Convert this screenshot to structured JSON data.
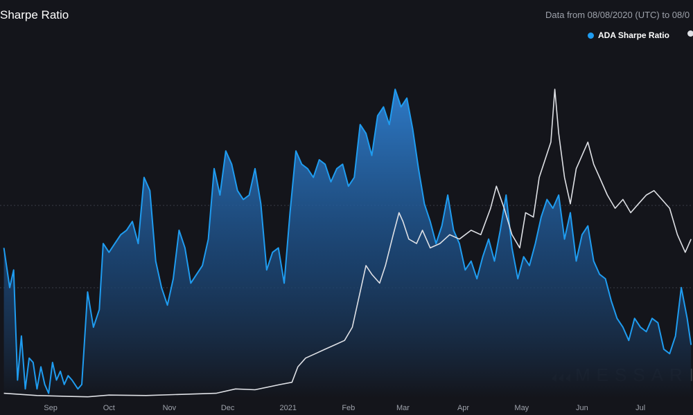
{
  "header": {
    "title": "Sharpe Ratio",
    "source_text": "Data from 08/08/2020 (UTC) to 08/0"
  },
  "watermark": "MESSARI",
  "colors": {
    "background": "#14151b",
    "ada": "#1f9cf0",
    "comparison": "#dfe1e6",
    "grid": "#3a3d47",
    "tick_text": "#9ea2ab"
  },
  "chart_data": {
    "type": "area",
    "title": "Sharpe Ratio",
    "x_axis": {
      "type": "date",
      "ticks": [
        "Sep",
        "Oct",
        "Nov",
        "Dec",
        "2021",
        "Feb",
        "Mar",
        "Apr",
        "May",
        "Jun",
        "Jul"
      ]
    },
    "legend": {
      "position": "top-right",
      "entries": [
        "ADA Sharpe Ratio"
      ]
    },
    "grid": {
      "horizontal_lines": 2,
      "style": "dotted"
    },
    "series": [
      {
        "name": "ADA Sharpe Ratio",
        "style": "area",
        "data": [
          [
            "2020-08-08",
            3.4
          ],
          [
            "2020-08-11",
            2.5
          ],
          [
            "2020-08-13",
            2.9
          ],
          [
            "2020-08-15",
            0.4
          ],
          [
            "2020-08-17",
            1.4
          ],
          [
            "2020-08-19",
            0.2
          ],
          [
            "2020-08-21",
            0.9
          ],
          [
            "2020-08-23",
            0.8
          ],
          [
            "2020-08-25",
            0.2
          ],
          [
            "2020-08-27",
            0.7
          ],
          [
            "2020-08-29",
            0.3
          ],
          [
            "2020-08-31",
            0.1
          ],
          [
            "2020-09-02",
            0.8
          ],
          [
            "2020-09-04",
            0.4
          ],
          [
            "2020-09-06",
            0.6
          ],
          [
            "2020-09-08",
            0.3
          ],
          [
            "2020-09-10",
            0.5
          ],
          [
            "2020-09-12",
            0.4
          ],
          [
            "2020-09-15",
            0.2
          ],
          [
            "2020-09-17",
            0.3
          ],
          [
            "2020-09-20",
            2.4
          ],
          [
            "2020-09-23",
            1.6
          ],
          [
            "2020-09-26",
            2.0
          ],
          [
            "2020-09-28",
            3.5
          ],
          [
            "2020-10-01",
            3.3
          ],
          [
            "2020-10-04",
            3.5
          ],
          [
            "2020-10-07",
            3.7
          ],
          [
            "2020-10-10",
            3.8
          ],
          [
            "2020-10-13",
            4.0
          ],
          [
            "2020-10-16",
            3.5
          ],
          [
            "2020-10-19",
            5.0
          ],
          [
            "2020-10-22",
            4.7
          ],
          [
            "2020-10-25",
            3.1
          ],
          [
            "2020-10-28",
            2.5
          ],
          [
            "2020-10-31",
            2.1
          ],
          [
            "2020-11-03",
            2.7
          ],
          [
            "2020-11-06",
            3.8
          ],
          [
            "2020-11-09",
            3.4
          ],
          [
            "2020-11-12",
            2.6
          ],
          [
            "2020-11-15",
            2.8
          ],
          [
            "2020-11-18",
            3.0
          ],
          [
            "2020-11-21",
            3.6
          ],
          [
            "2020-11-24",
            5.2
          ],
          [
            "2020-11-27",
            4.6
          ],
          [
            "2020-11-30",
            5.6
          ],
          [
            "2020-12-03",
            5.3
          ],
          [
            "2020-12-06",
            4.7
          ],
          [
            "2020-12-09",
            4.5
          ],
          [
            "2020-12-12",
            4.6
          ],
          [
            "2020-12-15",
            5.2
          ],
          [
            "2020-12-18",
            4.4
          ],
          [
            "2020-12-21",
            2.9
          ],
          [
            "2020-12-24",
            3.3
          ],
          [
            "2020-12-27",
            3.4
          ],
          [
            "2020-12-30",
            2.6
          ],
          [
            "2021-01-02",
            4.2
          ],
          [
            "2021-01-05",
            5.6
          ],
          [
            "2021-01-08",
            5.3
          ],
          [
            "2021-01-11",
            5.2
          ],
          [
            "2021-01-14",
            5.0
          ],
          [
            "2021-01-17",
            5.4
          ],
          [
            "2021-01-20",
            5.3
          ],
          [
            "2021-01-23",
            4.9
          ],
          [
            "2021-01-26",
            5.2
          ],
          [
            "2021-01-29",
            5.3
          ],
          [
            "2021-02-01",
            4.8
          ],
          [
            "2021-02-04",
            5.0
          ],
          [
            "2021-02-07",
            6.2
          ],
          [
            "2021-02-10",
            6.0
          ],
          [
            "2021-02-13",
            5.5
          ],
          [
            "2021-02-16",
            6.4
          ],
          [
            "2021-02-19",
            6.6
          ],
          [
            "2021-02-22",
            6.2
          ],
          [
            "2021-02-25",
            7.0
          ],
          [
            "2021-02-28",
            6.6
          ],
          [
            "2021-03-03",
            6.8
          ],
          [
            "2021-03-06",
            6.1
          ],
          [
            "2021-03-09",
            5.2
          ],
          [
            "2021-03-12",
            4.4
          ],
          [
            "2021-03-15",
            4.0
          ],
          [
            "2021-03-18",
            3.5
          ],
          [
            "2021-03-21",
            3.9
          ],
          [
            "2021-03-24",
            4.6
          ],
          [
            "2021-03-27",
            3.8
          ],
          [
            "2021-03-30",
            3.5
          ],
          [
            "2021-04-02",
            2.9
          ],
          [
            "2021-04-05",
            3.1
          ],
          [
            "2021-04-08",
            2.7
          ],
          [
            "2021-04-11",
            3.2
          ],
          [
            "2021-04-14",
            3.6
          ],
          [
            "2021-04-17",
            3.1
          ],
          [
            "2021-04-20",
            3.8
          ],
          [
            "2021-04-23",
            4.6
          ],
          [
            "2021-04-26",
            3.4
          ],
          [
            "2021-04-29",
            2.7
          ],
          [
            "2021-05-02",
            3.2
          ],
          [
            "2021-05-05",
            3.0
          ],
          [
            "2021-05-08",
            3.5
          ],
          [
            "2021-05-11",
            4.1
          ],
          [
            "2021-05-14",
            4.5
          ],
          [
            "2021-05-17",
            4.3
          ],
          [
            "2021-05-20",
            4.6
          ],
          [
            "2021-05-23",
            3.6
          ],
          [
            "2021-05-26",
            4.2
          ],
          [
            "2021-05-29",
            3.1
          ],
          [
            "2021-06-01",
            3.7
          ],
          [
            "2021-06-04",
            3.9
          ],
          [
            "2021-06-07",
            3.1
          ],
          [
            "2021-06-10",
            2.8
          ],
          [
            "2021-06-13",
            2.7
          ],
          [
            "2021-06-16",
            2.2
          ],
          [
            "2021-06-19",
            1.8
          ],
          [
            "2021-06-22",
            1.6
          ],
          [
            "2021-06-25",
            1.3
          ],
          [
            "2021-06-28",
            1.8
          ],
          [
            "2021-07-01",
            1.6
          ],
          [
            "2021-07-04",
            1.5
          ],
          [
            "2021-07-07",
            1.8
          ],
          [
            "2021-07-10",
            1.7
          ],
          [
            "2021-07-13",
            1.1
          ],
          [
            "2021-07-16",
            1.0
          ],
          [
            "2021-07-19",
            1.4
          ],
          [
            "2021-07-22",
            2.5
          ],
          [
            "2021-07-25",
            1.8
          ],
          [
            "2021-07-27",
            1.2
          ]
        ]
      },
      {
        "name": "",
        "style": "line",
        "data": [
          [
            "2020-08-08",
            0.1
          ],
          [
            "2020-08-25",
            0.05
          ],
          [
            "2020-09-10",
            0.03
          ],
          [
            "2020-09-20",
            0.02
          ],
          [
            "2020-10-01",
            0.06
          ],
          [
            "2020-10-20",
            0.05
          ],
          [
            "2020-11-10",
            0.08
          ],
          [
            "2020-11-25",
            0.1
          ],
          [
            "2020-12-05",
            0.2
          ],
          [
            "2020-12-15",
            0.18
          ],
          [
            "2020-12-28",
            0.3
          ],
          [
            "2021-01-03",
            0.35
          ],
          [
            "2021-01-06",
            0.7
          ],
          [
            "2021-01-10",
            0.9
          ],
          [
            "2021-01-15",
            1.0
          ],
          [
            "2021-01-20",
            1.1
          ],
          [
            "2021-01-25",
            1.2
          ],
          [
            "2021-01-30",
            1.3
          ],
          [
            "2021-02-03",
            1.6
          ],
          [
            "2021-02-07",
            2.4
          ],
          [
            "2021-02-10",
            3.0
          ],
          [
            "2021-02-13",
            2.8
          ],
          [
            "2021-02-17",
            2.6
          ],
          [
            "2021-02-20",
            3.0
          ],
          [
            "2021-02-24",
            3.7
          ],
          [
            "2021-02-27",
            4.2
          ],
          [
            "2021-03-01",
            4.0
          ],
          [
            "2021-03-04",
            3.6
          ],
          [
            "2021-03-08",
            3.5
          ],
          [
            "2021-03-11",
            3.8
          ],
          [
            "2021-03-15",
            3.4
          ],
          [
            "2021-03-20",
            3.5
          ],
          [
            "2021-03-25",
            3.7
          ],
          [
            "2021-03-30",
            3.6
          ],
          [
            "2021-04-05",
            3.8
          ],
          [
            "2021-04-10",
            3.7
          ],
          [
            "2021-04-15",
            4.3
          ],
          [
            "2021-04-18",
            4.8
          ],
          [
            "2021-04-22",
            4.3
          ],
          [
            "2021-04-26",
            3.7
          ],
          [
            "2021-04-30",
            3.4
          ],
          [
            "2021-05-03",
            4.2
          ],
          [
            "2021-05-07",
            4.1
          ],
          [
            "2021-05-10",
            5.0
          ],
          [
            "2021-05-13",
            5.4
          ],
          [
            "2021-05-16",
            5.8
          ],
          [
            "2021-05-18",
            7.0
          ],
          [
            "2021-05-20",
            6.0
          ],
          [
            "2021-05-23",
            5.0
          ],
          [
            "2021-05-26",
            4.4
          ],
          [
            "2021-05-29",
            5.2
          ],
          [
            "2021-06-01",
            5.5
          ],
          [
            "2021-06-04",
            5.8
          ],
          [
            "2021-06-07",
            5.3
          ],
          [
            "2021-06-10",
            5.0
          ],
          [
            "2021-06-14",
            4.6
          ],
          [
            "2021-06-18",
            4.3
          ],
          [
            "2021-06-22",
            4.5
          ],
          [
            "2021-06-26",
            4.2
          ],
          [
            "2021-06-30",
            4.4
          ],
          [
            "2021-07-04",
            4.6
          ],
          [
            "2021-07-08",
            4.7
          ],
          [
            "2021-07-12",
            4.5
          ],
          [
            "2021-07-16",
            4.3
          ],
          [
            "2021-07-20",
            3.7
          ],
          [
            "2021-07-24",
            3.3
          ],
          [
            "2021-07-27",
            3.6
          ]
        ]
      }
    ]
  }
}
